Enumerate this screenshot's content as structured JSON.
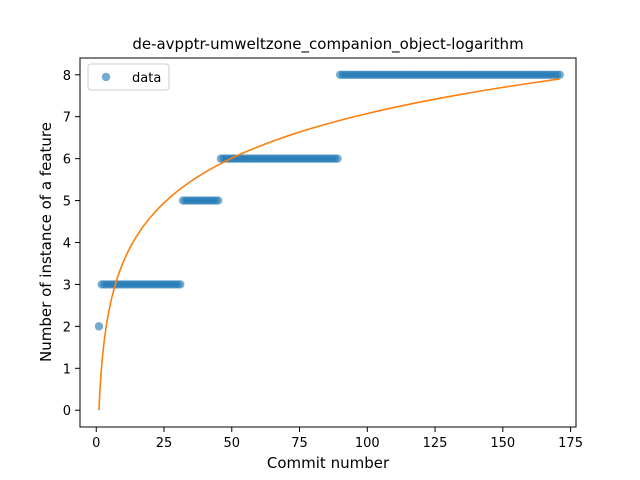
{
  "chart_data": {
    "type": "scatter",
    "title": "de-avpptr-umweltzone_companion_object-logarithm",
    "xlabel": "Commit number",
    "ylabel": "Number of instance of a feature",
    "xlim": [
      -6,
      177
    ],
    "ylim": [
      -0.4,
      8.4
    ],
    "xticks": [
      0,
      25,
      50,
      75,
      100,
      125,
      150,
      175
    ],
    "yticks": [
      0,
      1,
      2,
      3,
      4,
      5,
      6,
      7,
      8
    ],
    "grid": false,
    "legend": {
      "placement": "top-left",
      "entries": [
        "data"
      ]
    },
    "colors": {
      "data": "#1f77b4",
      "fit": "#ff7f0e"
    },
    "series": [
      {
        "name": "data",
        "kind": "scatter",
        "segments": [
          {
            "x_start": 1,
            "x_end": 1,
            "y": 2
          },
          {
            "x_start": 2,
            "x_end": 31,
            "y": 3
          },
          {
            "x_start": 32,
            "x_end": 45,
            "y": 5
          },
          {
            "x_start": 46,
            "x_end": 89,
            "y": 6
          },
          {
            "x_start": 90,
            "x_end": 171,
            "y": 8
          }
        ]
      },
      {
        "kind": "line",
        "model": "logarithmic",
        "x_range": [
          1,
          171
        ],
        "y_at_start": 0,
        "y_at_end": 7.9
      }
    ]
  }
}
